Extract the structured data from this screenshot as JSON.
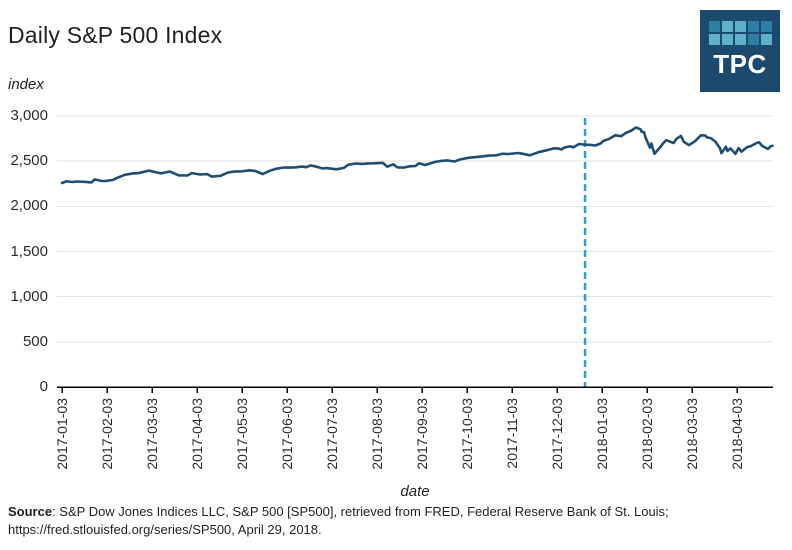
{
  "logo": {
    "text": "TPC",
    "bg": "#1c4a6e",
    "square_dark": "#2d7ea3",
    "square_light": "#5fb0ca",
    "squares": [
      "dark",
      "light",
      "light",
      "dark",
      "dark",
      "light",
      "light",
      "light",
      "dark",
      "light"
    ]
  },
  "chart_data": {
    "type": "line",
    "title": "Daily S&P 500 Index",
    "xlabel": "date",
    "ylabel": "index",
    "ylim": [
      0,
      3000
    ],
    "grid": "horizontal",
    "line_color": "#1e4e74",
    "grid_color": "#e2e2e2",
    "axis_color": "#000000",
    "reference_line": {
      "date": "2017-12-22",
      "style": "dashed",
      "color": "#2a9fd8"
    },
    "y_ticks": [
      {
        "value": 0,
        "label": "0"
      },
      {
        "value": 500,
        "label": "500"
      },
      {
        "value": 1000,
        "label": "1,000"
      },
      {
        "value": 1500,
        "label": "1,500"
      },
      {
        "value": 2000,
        "label": "2,000"
      },
      {
        "value": 2500,
        "label": "2,500"
      },
      {
        "value": 3000,
        "label": "3,000"
      }
    ],
    "x_ticks": [
      "2017-01-03",
      "2017-02-03",
      "2017-03-03",
      "2017-04-03",
      "2017-05-03",
      "2017-06-03",
      "2017-07-03",
      "2017-08-03",
      "2017-09-03",
      "2017-10-03",
      "2017-11-03",
      "2017-12-03",
      "2018-01-03",
      "2018-02-03",
      "2018-03-03",
      "2018-04-03"
    ],
    "series": [
      {
        "name": "S&P 500",
        "points": [
          [
            "2017-01-03",
            2257.83
          ],
          [
            "2017-01-06",
            2276.98
          ],
          [
            "2017-01-10",
            2268.9
          ],
          [
            "2017-01-13",
            2274.64
          ],
          [
            "2017-01-18",
            2271.89
          ],
          [
            "2017-01-23",
            2265.2
          ],
          [
            "2017-01-25",
            2298.37
          ],
          [
            "2017-01-30",
            2280.9
          ],
          [
            "2017-02-02",
            2280.85
          ],
          [
            "2017-02-07",
            2293.08
          ],
          [
            "2017-02-10",
            2316.1
          ],
          [
            "2017-02-15",
            2349.25
          ],
          [
            "2017-02-21",
            2365.38
          ],
          [
            "2017-02-24",
            2367.34
          ],
          [
            "2017-03-01",
            2395.96
          ],
          [
            "2017-03-06",
            2375.31
          ],
          [
            "2017-03-09",
            2364.87
          ],
          [
            "2017-03-15",
            2385.26
          ],
          [
            "2017-03-21",
            2344.02
          ],
          [
            "2017-03-27",
            2341.59
          ],
          [
            "2017-03-30",
            2368.06
          ],
          [
            "2017-04-05",
            2352.95
          ],
          [
            "2017-04-10",
            2357.16
          ],
          [
            "2017-04-13",
            2328.95
          ],
          [
            "2017-04-19",
            2338.17
          ],
          [
            "2017-04-24",
            2374.15
          ],
          [
            "2017-04-28",
            2384.2
          ],
          [
            "2017-05-03",
            2388.13
          ],
          [
            "2017-05-08",
            2399.38
          ],
          [
            "2017-05-12",
            2390.9
          ],
          [
            "2017-05-17",
            2357.03
          ],
          [
            "2017-05-22",
            2394.02
          ],
          [
            "2017-05-26",
            2415.82
          ],
          [
            "2017-06-01",
            2430.06
          ],
          [
            "2017-06-06",
            2429.33
          ],
          [
            "2017-06-09",
            2431.77
          ],
          [
            "2017-06-13",
            2440.35
          ],
          [
            "2017-06-16",
            2433.15
          ],
          [
            "2017-06-19",
            2453.46
          ],
          [
            "2017-06-23",
            2438.3
          ],
          [
            "2017-06-27",
            2419.38
          ],
          [
            "2017-06-30",
            2423.41
          ],
          [
            "2017-07-06",
            2409.75
          ],
          [
            "2017-07-11",
            2425.53
          ],
          [
            "2017-07-14",
            2459.27
          ],
          [
            "2017-07-19",
            2473.83
          ],
          [
            "2017-07-24",
            2469.91
          ],
          [
            "2017-07-27",
            2475.42
          ],
          [
            "2017-08-01",
            2476.35
          ],
          [
            "2017-08-07",
            2480.91
          ],
          [
            "2017-08-10",
            2438.21
          ],
          [
            "2017-08-14",
            2465.84
          ],
          [
            "2017-08-17",
            2430.01
          ],
          [
            "2017-08-21",
            2428.37
          ],
          [
            "2017-08-25",
            2443.05
          ],
          [
            "2017-08-29",
            2446.3
          ],
          [
            "2017-09-01",
            2476.55
          ],
          [
            "2017-09-05",
            2457.85
          ],
          [
            "2017-09-11",
            2488.11
          ],
          [
            "2017-09-15",
            2500.23
          ],
          [
            "2017-09-20",
            2508.24
          ],
          [
            "2017-09-25",
            2496.66
          ],
          [
            "2017-09-29",
            2519.36
          ],
          [
            "2017-10-04",
            2537.74
          ],
          [
            "2017-10-09",
            2544.73
          ],
          [
            "2017-10-13",
            2553.17
          ],
          [
            "2017-10-18",
            2561.26
          ],
          [
            "2017-10-23",
            2564.98
          ],
          [
            "2017-10-27",
            2581.07
          ],
          [
            "2017-11-01",
            2579.36
          ],
          [
            "2017-11-07",
            2590.64
          ],
          [
            "2017-11-10",
            2582.3
          ],
          [
            "2017-11-15",
            2564.62
          ],
          [
            "2017-11-21",
            2599.03
          ],
          [
            "2017-11-28",
            2627.04
          ],
          [
            "2017-12-01",
            2642.22
          ],
          [
            "2017-12-04",
            2639.44
          ],
          [
            "2017-12-06",
            2629.27
          ],
          [
            "2017-12-08",
            2651.5
          ],
          [
            "2017-12-12",
            2664.11
          ],
          [
            "2017-12-14",
            2652.01
          ],
          [
            "2017-12-18",
            2690.16
          ],
          [
            "2017-12-21",
            2684.57
          ],
          [
            "2017-12-26",
            2680.5
          ],
          [
            "2017-12-29",
            2673.61
          ],
          [
            "2018-01-02",
            2695.81
          ],
          [
            "2018-01-04",
            2723.99
          ],
          [
            "2018-01-08",
            2747.71
          ],
          [
            "2018-01-12",
            2786.24
          ],
          [
            "2018-01-16",
            2776.42
          ],
          [
            "2018-01-19",
            2810.3
          ],
          [
            "2018-01-23",
            2839.13
          ],
          [
            "2018-01-26",
            2872.87
          ],
          [
            "2018-01-29",
            2853.53
          ],
          [
            "2018-01-30",
            2822.43
          ],
          [
            "2018-02-01",
            2821.98
          ],
          [
            "2018-02-02",
            2762.13
          ],
          [
            "2018-02-05",
            2648.94
          ],
          [
            "2018-02-06",
            2695.14
          ],
          [
            "2018-02-08",
            2581.0
          ],
          [
            "2018-02-12",
            2656.0
          ],
          [
            "2018-02-14",
            2698.63
          ],
          [
            "2018-02-16",
            2732.22
          ],
          [
            "2018-02-21",
            2701.33
          ],
          [
            "2018-02-23",
            2747.3
          ],
          [
            "2018-02-26",
            2779.6
          ],
          [
            "2018-02-28",
            2713.83
          ],
          [
            "2018-03-01",
            2677.67
          ],
          [
            "2018-03-05",
            2720.94
          ],
          [
            "2018-03-09",
            2786.57
          ],
          [
            "2018-03-12",
            2783.02
          ],
          [
            "2018-03-13",
            2765.31
          ],
          [
            "2018-03-16",
            2752.01
          ],
          [
            "2018-03-19",
            2712.92
          ],
          [
            "2018-03-22",
            2643.69
          ],
          [
            "2018-03-23",
            2588.26
          ],
          [
            "2018-03-26",
            2658.55
          ],
          [
            "2018-03-27",
            2612.62
          ],
          [
            "2018-03-29",
            2640.87
          ],
          [
            "2018-04-02",
            2581.88
          ],
          [
            "2018-04-04",
            2644.69
          ],
          [
            "2018-04-06",
            2604.47
          ],
          [
            "2018-04-10",
            2656.87
          ],
          [
            "2018-04-12",
            2663.99
          ],
          [
            "2018-04-17",
            2706.39
          ],
          [
            "2018-04-18",
            2708.64
          ],
          [
            "2018-04-20",
            2670.14
          ],
          [
            "2018-04-24",
            2634.56
          ],
          [
            "2018-04-26",
            2666.94
          ],
          [
            "2018-04-27",
            2669.91
          ]
        ]
      }
    ]
  },
  "footer": {
    "source_label": "Source",
    "source_rest": ": S&P Dow Jones Indices LLC, S&P 500 [SP500], retrieved from FRED, Federal Reserve Bank of St. Louis;",
    "source_line2": "https://fred.stlouisfed.org/series/SP500, April 29, 2018."
  }
}
